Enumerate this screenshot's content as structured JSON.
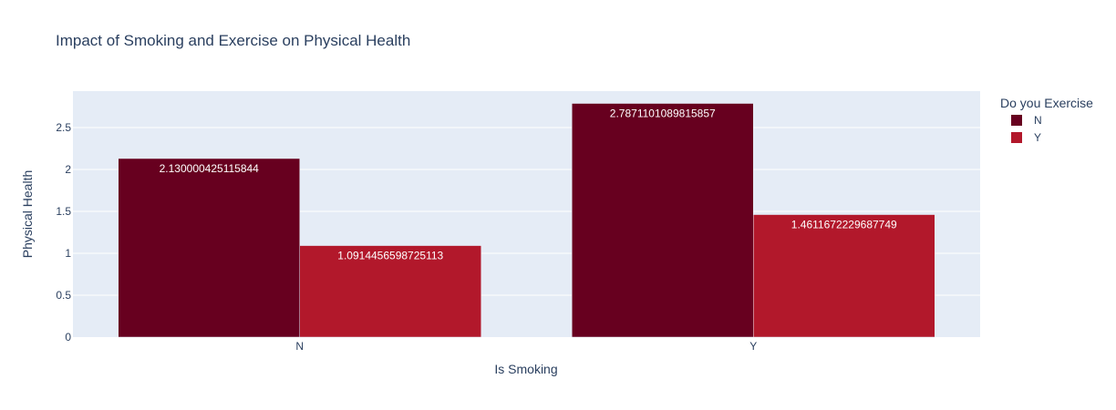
{
  "chart_data": {
    "type": "bar",
    "title": "Impact of Smoking and Exercise on Physical Health",
    "xlabel": "Is Smoking",
    "ylabel": "Physical Health",
    "categories": [
      "N",
      "Y"
    ],
    "ylim": [
      0,
      2.934
    ],
    "yticks": [
      0,
      0.5,
      1,
      1.5,
      2,
      2.5
    ],
    "ytick_labels": [
      "0",
      "0.5",
      "1",
      "1.5",
      "2",
      "2.5"
    ],
    "grid": true,
    "legend": {
      "title": "Do you Exercise",
      "placement": "top-right"
    },
    "series": [
      {
        "name": "N",
        "color": "#67001f",
        "values": [
          2.130000425115844,
          2.787110108981586
        ],
        "labels": [
          "2.130000425115844",
          "2.7871101089815857"
        ]
      },
      {
        "name": "Y",
        "color": "#b2182b",
        "values": [
          1.0914456598725113,
          1.4611672229687749
        ],
        "labels": [
          "1.0914456598725113",
          "1.4611672229687749"
        ]
      }
    ]
  }
}
